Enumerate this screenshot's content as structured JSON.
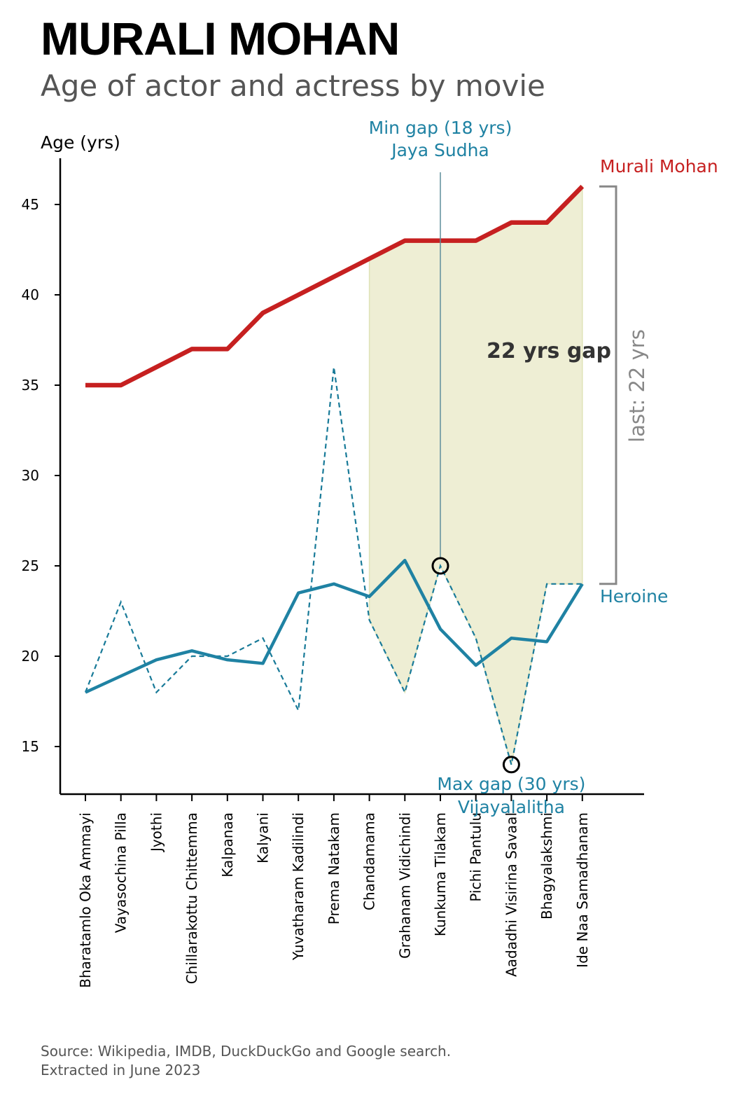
{
  "title": "MURALI MOHAN",
  "subtitle": "Age of actor and actress by movie",
  "source": {
    "line1": "Source: Wikipedia, IMDB, DuckDuckGo and Google search.",
    "line2": "Extracted in June 2023"
  },
  "colors": {
    "actor": "#c62020",
    "heroine": "#1f82a3",
    "gap_fill": "#eeeed4",
    "bracket": "#888888",
    "axis": "#000000"
  },
  "chart_data": {
    "type": "line",
    "ylabel": "Age (yrs)",
    "ylim": [
      12.5,
      47.5
    ],
    "yticks": [
      15,
      20,
      25,
      30,
      35,
      40,
      45
    ],
    "categories": [
      "Bharatamlo Oka Ammayi",
      "Vayasochina Pilla",
      "Jyothi",
      "Chillarakottu Chittemma",
      "Kalpanaa",
      "Kalyani",
      "Yuvatharam Kadilindi",
      "Prema Natakam",
      "Chandamama",
      "Grahanam Vidichindi",
      "Kunkuma Tilakam",
      "Pichi Pantulu",
      "Aadadhi Visirina Savaal",
      "Bhagyalakshmi",
      "Ide Naa Samadhanam"
    ],
    "series": [
      {
        "name": "Murali Mohan",
        "style": "thick-solid",
        "values": [
          35,
          35,
          36,
          37,
          37,
          39,
          40,
          41,
          42,
          43,
          43,
          43,
          44,
          44,
          46
        ]
      },
      {
        "name": "Heroine",
        "style": "solid-smoothed",
        "values": [
          18,
          18.9,
          19.8,
          20.3,
          19.8,
          19.6,
          23.5,
          24,
          23.3,
          25.3,
          21.5,
          19.5,
          21,
          20.8,
          24
        ]
      },
      {
        "style": "dashed-actual",
        "values": [
          18,
          23,
          18,
          20,
          20,
          21,
          17,
          36,
          22,
          18,
          25,
          21,
          14,
          24,
          24
        ]
      }
    ],
    "annotations": {
      "gap_label": "22 yrs gap",
      "last_gap_label": "last: 22 yrs",
      "min_gap_line1": "Min gap (18 yrs)",
      "min_gap_line2": "Jaya Sudha",
      "min_gap_index": 10,
      "max_gap_line1": "Max gap (30 yrs)",
      "max_gap_line2": "Vijayalalitha",
      "max_gap_index": 12,
      "shade_from_index": 8
    }
  }
}
